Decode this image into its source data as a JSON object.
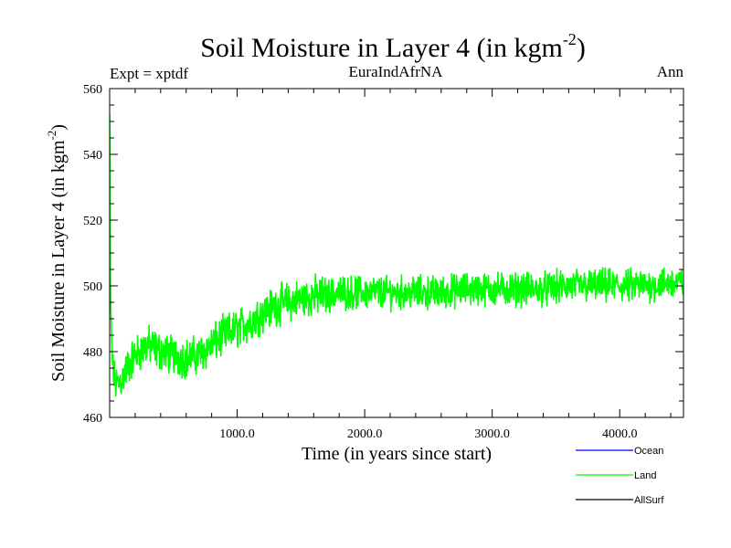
{
  "chart_data": {
    "type": "line",
    "title": "Soil Moisture in Layer 4 (in kgm",
    "title_sup": "-2",
    "title_close": ")",
    "subtitle_left": "Expt = xptdf",
    "subtitle_center": "EuraIndAfrNA",
    "subtitle_right": "Ann",
    "xlabel": "Time (in years since start)",
    "ylabel": "Soil Moisture in Layer 4 (in kgm",
    "ylabel_sup": "-2",
    "ylabel_close": ")",
    "xlim": [
      0,
      4500
    ],
    "ylim": [
      460,
      560
    ],
    "xticks": [
      1000,
      2000,
      3000,
      4000
    ],
    "xtick_labels": [
      "1000.0",
      "2000.0",
      "3000.0",
      "4000.0"
    ],
    "yticks": [
      460,
      480,
      500,
      520,
      540,
      560
    ],
    "ytick_labels": [
      "460",
      "480",
      "500",
      "520",
      "540",
      "560"
    ],
    "grid": false,
    "legend_position": "bottom-right",
    "series": [
      {
        "name": "Ocean",
        "color": "#0000ff",
        "x": [],
        "values": []
      },
      {
        "name": "Land",
        "color": "#00ff00",
        "x": [
          0,
          5,
          10,
          20,
          40,
          60,
          100,
          150,
          200,
          300,
          400,
          500,
          600,
          700,
          800,
          900,
          1000,
          1100,
          1200,
          1300,
          1400,
          1500,
          1600,
          1700,
          1800,
          2000,
          2200,
          2400,
          2600,
          2800,
          3000,
          3200,
          3400,
          3600,
          3800,
          4000,
          4200,
          4400,
          4500
        ],
        "values": [
          552,
          505,
          490,
          478,
          471,
          470,
          472,
          476,
          479,
          482,
          480,
          479,
          478,
          479,
          482,
          485,
          487,
          489,
          492,
          494,
          495,
          496,
          497,
          497,
          498,
          498,
          498,
          498,
          498,
          499,
          499,
          499,
          499,
          500,
          500,
          500,
          500,
          501,
          501
        ]
      },
      {
        "name": "AllSurf",
        "color": "#000000",
        "x": [],
        "values": []
      }
    ]
  }
}
